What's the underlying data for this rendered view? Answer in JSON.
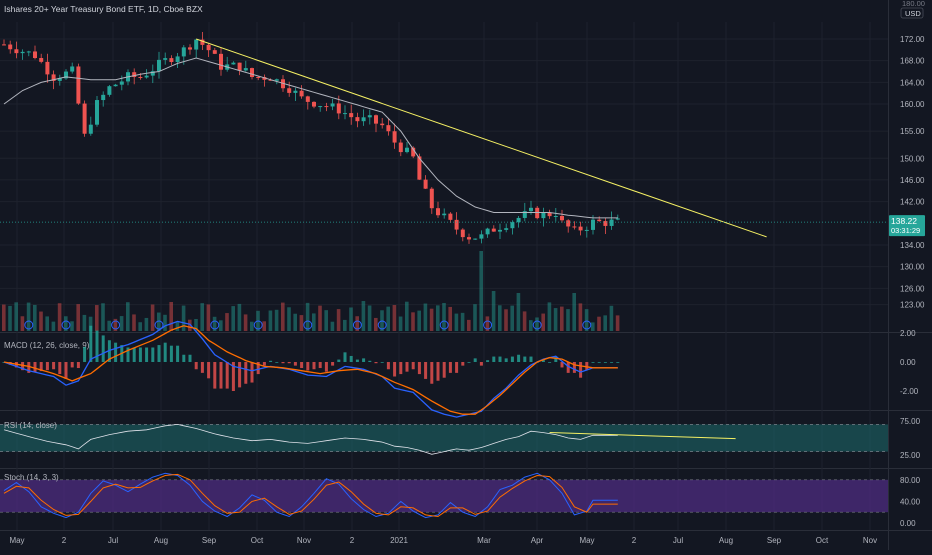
{
  "window": {
    "title": "Ishares 20+ Year Treasury Bond ETF, 1D, Cboe BZX",
    "currency": "USD",
    "top_value": "180.00"
  },
  "price_tag": {
    "value": "138.22",
    "countdown": "03:31:29"
  },
  "colors": {
    "background": "#131722",
    "up": "#26a69a",
    "down": "#ef5350",
    "ma": "#b2b5be",
    "trendline": "#f5f064",
    "macd": "#2962ff",
    "signal": "#ff6d00",
    "rsi_fill": "#1e6e6e",
    "stoch_fill": "#4a2a7a"
  },
  "chart_data": [
    {
      "type": "candlestick",
      "title": "Ishares 20+ Year Treasury Bond ETF, 1D, Cboe BZX",
      "x_ticks": [
        "May",
        "2",
        "Jul",
        "Aug",
        "Sep",
        "Oct",
        "Nov",
        "2",
        "2021",
        "Mar",
        "Apr",
        "May",
        "2",
        "Jul",
        "Aug",
        "Sep",
        "Oct",
        "Nov"
      ],
      "y_ticks": [
        172.0,
        168.0,
        164.0,
        160.0,
        155.0,
        150.0,
        146.0,
        142.0,
        138.22,
        134.0,
        130.0,
        126.0,
        123.0
      ],
      "last_price": 138.22,
      "price_path_anchors": [
        [
          0,
          171
        ],
        [
          5,
          169
        ],
        [
          8,
          165
        ],
        [
          11,
          166
        ],
        [
          13,
          154
        ],
        [
          15,
          160
        ],
        [
          17,
          163
        ],
        [
          20,
          165
        ],
        [
          22,
          165
        ],
        [
          26,
          168
        ],
        [
          29,
          170
        ],
        [
          31,
          172
        ],
        [
          33,
          170
        ],
        [
          35,
          167
        ],
        [
          38,
          167
        ],
        [
          40,
          165
        ],
        [
          43,
          165
        ],
        [
          46,
          163
        ],
        [
          48,
          161
        ],
        [
          51,
          160
        ],
        [
          54,
          159
        ],
        [
          57,
          157
        ],
        [
          59,
          157
        ],
        [
          61,
          156
        ],
        [
          63,
          153
        ],
        [
          66,
          150
        ],
        [
          67,
          146
        ],
        [
          69,
          141
        ],
        [
          71,
          139
        ],
        [
          73,
          137
        ],
        [
          75,
          135.5
        ],
        [
          77,
          135.5
        ],
        [
          79,
          137
        ],
        [
          81,
          138
        ],
        [
          83,
          139
        ],
        [
          85,
          140
        ],
        [
          87,
          139.5
        ],
        [
          89,
          140
        ],
        [
          90,
          138
        ],
        [
          92,
          136.5
        ],
        [
          94,
          137.5
        ],
        [
          95,
          138.2
        ]
      ],
      "moving_average_anchors": [
        [
          0,
          160
        ],
        [
          3,
          162.5
        ],
        [
          6,
          164
        ],
        [
          10,
          165
        ],
        [
          14,
          164.5
        ],
        [
          18,
          164.5
        ],
        [
          22,
          165.5
        ],
        [
          25,
          166
        ],
        [
          28,
          167.5
        ],
        [
          31,
          168.5
        ],
        [
          34,
          167.5
        ],
        [
          37,
          166.5
        ],
        [
          40,
          165.5
        ],
        [
          43,
          164.5
        ],
        [
          46,
          163.5
        ],
        [
          49,
          162.5
        ],
        [
          52,
          161.5
        ],
        [
          55,
          160.5
        ],
        [
          58,
          159.5
        ],
        [
          61,
          158.5
        ],
        [
          64,
          155
        ],
        [
          67,
          150
        ],
        [
          70,
          146
        ],
        [
          73,
          143
        ],
        [
          76,
          141
        ],
        [
          79,
          140
        ],
        [
          82,
          140
        ],
        [
          85,
          140
        ],
        [
          88,
          140
        ],
        [
          91,
          139.5
        ],
        [
          95,
          139
        ]
      ],
      "trendline": {
        "from": [
          31,
          172
        ],
        "to": [
          123,
          135.5
        ]
      },
      "volume": "relative bars with event markers along the bottom of the price pane"
    },
    {
      "type": "line",
      "title": "MACD (12, 26, close, 9)",
      "y_ticks": [
        2.0,
        0.0,
        -2.0
      ],
      "macd_anchors": [
        [
          0,
          0.0
        ],
        [
          4,
          -0.6
        ],
        [
          8,
          -1.0
        ],
        [
          10,
          -1.6
        ],
        [
          12,
          -1.3
        ],
        [
          14,
          0.2
        ],
        [
          17,
          0.8
        ],
        [
          20,
          1.2
        ],
        [
          24,
          1.9
        ],
        [
          26,
          2.5
        ],
        [
          28,
          2.8
        ],
        [
          30,
          2.6
        ],
        [
          32,
          1.6
        ],
        [
          34,
          0.5
        ],
        [
          37,
          -0.3
        ],
        [
          40,
          -0.6
        ],
        [
          43,
          -0.3
        ],
        [
          46,
          -0.5
        ],
        [
          49,
          -0.9
        ],
        [
          52,
          -1.0
        ],
        [
          55,
          -0.3
        ],
        [
          58,
          -0.5
        ],
        [
          61,
          -1.0
        ],
        [
          63,
          -1.8
        ],
        [
          66,
          -2.1
        ],
        [
          69,
          -3.3
        ],
        [
          71,
          -3.6
        ],
        [
          73,
          -3.8
        ],
        [
          75,
          -3.6
        ],
        [
          77,
          -3.4
        ],
        [
          79,
          -2.5
        ],
        [
          81,
          -1.8
        ],
        [
          83,
          -0.9
        ],
        [
          85,
          -0.2
        ],
        [
          87,
          0.2
        ],
        [
          89,
          0.4
        ],
        [
          91,
          -0.3
        ],
        [
          93,
          -0.7
        ],
        [
          95,
          -0.4
        ]
      ],
      "signal_anchors": [
        [
          0,
          0.0
        ],
        [
          4,
          -0.3
        ],
        [
          8,
          -0.8
        ],
        [
          11,
          -1.3
        ],
        [
          14,
          -0.8
        ],
        [
          17,
          0.2
        ],
        [
          20,
          0.8
        ],
        [
          24,
          1.5
        ],
        [
          27,
          2.2
        ],
        [
          29,
          2.5
        ],
        [
          31,
          2.3
        ],
        [
          33,
          1.5
        ],
        [
          36,
          0.7
        ],
        [
          39,
          0.1
        ],
        [
          42,
          -0.3
        ],
        [
          45,
          -0.4
        ],
        [
          48,
          -0.6
        ],
        [
          51,
          -0.8
        ],
        [
          54,
          -0.6
        ],
        [
          57,
          -0.5
        ],
        [
          60,
          -0.8
        ],
        [
          63,
          -1.4
        ],
        [
          66,
          -1.9
        ],
        [
          69,
          -2.7
        ],
        [
          72,
          -3.4
        ],
        [
          74,
          -3.6
        ],
        [
          76,
          -3.6
        ],
        [
          78,
          -3.0
        ],
        [
          80,
          -2.3
        ],
        [
          82,
          -1.5
        ],
        [
          84,
          -0.7
        ],
        [
          86,
          0.0
        ],
        [
          88,
          0.3
        ],
        [
          90,
          0.2
        ],
        [
          92,
          -0.2
        ],
        [
          95,
          -0.4
        ]
      ]
    },
    {
      "type": "line",
      "title": "RSI (14, close)",
      "y_ticks": [
        75.0,
        25.0
      ],
      "band": [
        30,
        70
      ],
      "anchors": [
        [
          0,
          62
        ],
        [
          4,
          52
        ],
        [
          7,
          45
        ],
        [
          10,
          40
        ],
        [
          12,
          34
        ],
        [
          14,
          48
        ],
        [
          17,
          55
        ],
        [
          20,
          60
        ],
        [
          23,
          62
        ],
        [
          26,
          68
        ],
        [
          28,
          70
        ],
        [
          31,
          64
        ],
        [
          34,
          56
        ],
        [
          37,
          50
        ],
        [
          40,
          46
        ],
        [
          43,
          48
        ],
        [
          46,
          44
        ],
        [
          49,
          42
        ],
        [
          52,
          46
        ],
        [
          55,
          50
        ],
        [
          58,
          48
        ],
        [
          61,
          44
        ],
        [
          63,
          38
        ],
        [
          65,
          36
        ],
        [
          67,
          32
        ],
        [
          69,
          26
        ],
        [
          71,
          30
        ],
        [
          73,
          34
        ],
        [
          75,
          32
        ],
        [
          77,
          36
        ],
        [
          79,
          42
        ],
        [
          81,
          48
        ],
        [
          83,
          52
        ],
        [
          85,
          60
        ],
        [
          87,
          58
        ],
        [
          89,
          55
        ],
        [
          91,
          50
        ],
        [
          93,
          48
        ],
        [
          95,
          54
        ]
      ],
      "trendline": {
        "from": [
          88,
          58
        ],
        "to": [
          118,
          49
        ]
      }
    },
    {
      "type": "line",
      "title": "Stoch (14, 3, 3)",
      "y_ticks": [
        80.0,
        40.0,
        0.0
      ],
      "band": [
        20,
        80
      ],
      "k_anchors": [
        [
          0,
          60
        ],
        [
          2,
          75
        ],
        [
          4,
          58
        ],
        [
          6,
          30
        ],
        [
          8,
          18
        ],
        [
          10,
          10
        ],
        [
          12,
          20
        ],
        [
          14,
          55
        ],
        [
          16,
          78
        ],
        [
          18,
          70
        ],
        [
          20,
          58
        ],
        [
          22,
          72
        ],
        [
          24,
          85
        ],
        [
          26,
          92
        ],
        [
          28,
          88
        ],
        [
          30,
          70
        ],
        [
          32,
          40
        ],
        [
          34,
          22
        ],
        [
          36,
          12
        ],
        [
          38,
          28
        ],
        [
          40,
          52
        ],
        [
          42,
          42
        ],
        [
          44,
          20
        ],
        [
          46,
          12
        ],
        [
          48,
          30
        ],
        [
          50,
          55
        ],
        [
          52,
          82
        ],
        [
          54,
          72
        ],
        [
          56,
          45
        ],
        [
          58,
          25
        ],
        [
          60,
          12
        ],
        [
          62,
          18
        ],
        [
          64,
          40
        ],
        [
          66,
          22
        ],
        [
          68,
          10
        ],
        [
          70,
          15
        ],
        [
          72,
          38
        ],
        [
          74,
          20
        ],
        [
          76,
          12
        ],
        [
          78,
          30
        ],
        [
          80,
          62
        ],
        [
          82,
          70
        ],
        [
          84,
          85
        ],
        [
          86,
          92
        ],
        [
          88,
          80
        ],
        [
          90,
          55
        ],
        [
          92,
          15
        ],
        [
          94,
          22
        ],
        [
          95,
          42
        ]
      ],
      "d_anchors": [
        [
          0,
          55
        ],
        [
          2,
          68
        ],
        [
          4,
          65
        ],
        [
          6,
          42
        ],
        [
          8,
          25
        ],
        [
          10,
          14
        ],
        [
          12,
          16
        ],
        [
          14,
          40
        ],
        [
          16,
          65
        ],
        [
          18,
          72
        ],
        [
          20,
          65
        ],
        [
          22,
          66
        ],
        [
          24,
          78
        ],
        [
          26,
          88
        ],
        [
          28,
          90
        ],
        [
          30,
          80
        ],
        [
          32,
          55
        ],
        [
          34,
          32
        ],
        [
          36,
          18
        ],
        [
          38,
          20
        ],
        [
          40,
          40
        ],
        [
          42,
          46
        ],
        [
          44,
          30
        ],
        [
          46,
          16
        ],
        [
          48,
          22
        ],
        [
          50,
          44
        ],
        [
          52,
          70
        ],
        [
          54,
          76
        ],
        [
          56,
          58
        ],
        [
          58,
          35
        ],
        [
          60,
          18
        ],
        [
          62,
          15
        ],
        [
          64,
          30
        ],
        [
          66,
          28
        ],
        [
          68,
          15
        ],
        [
          70,
          12
        ],
        [
          72,
          28
        ],
        [
          74,
          28
        ],
        [
          76,
          16
        ],
        [
          78,
          22
        ],
        [
          80,
          48
        ],
        [
          82,
          64
        ],
        [
          84,
          78
        ],
        [
          86,
          88
        ],
        [
          88,
          86
        ],
        [
          90,
          66
        ],
        [
          92,
          30
        ],
        [
          94,
          20
        ],
        [
          95,
          35
        ]
      ]
    }
  ]
}
